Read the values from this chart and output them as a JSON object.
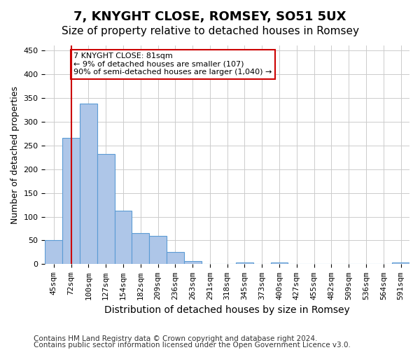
{
  "title": "7, KNYGHT CLOSE, ROMSEY, SO51 5UX",
  "subtitle": "Size of property relative to detached houses in Romsey",
  "xlabel": "Distribution of detached houses by size in Romsey",
  "ylabel": "Number of detached properties",
  "bin_labels": [
    "45sqm",
    "72sqm",
    "100sqm",
    "127sqm",
    "154sqm",
    "182sqm",
    "209sqm",
    "236sqm",
    "263sqm",
    "291sqm",
    "318sqm",
    "345sqm",
    "373sqm",
    "400sqm",
    "427sqm",
    "455sqm",
    "482sqm",
    "509sqm",
    "536sqm",
    "564sqm",
    "591sqm"
  ],
  "bar_heights": [
    50,
    265,
    338,
    232,
    112,
    65,
    60,
    25,
    6,
    0,
    0,
    4,
    0,
    4,
    0,
    0,
    0,
    0,
    0,
    0,
    4
  ],
  "bar_color": "#aec6e8",
  "bar_edge_color": "#5b9bd5",
  "vline_x": 1,
  "vline_color": "#cc0000",
  "annotation_text": "7 KNYGHT CLOSE: 81sqm\n← 9% of detached houses are smaller (107)\n90% of semi-detached houses are larger (1,040) →",
  "annotation_box_color": "#ffffff",
  "annotation_box_edge": "#cc0000",
  "ylim": [
    0,
    460
  ],
  "yticks": [
    0,
    50,
    100,
    150,
    200,
    250,
    300,
    350,
    400,
    450
  ],
  "footer_line1": "Contains HM Land Registry data © Crown copyright and database right 2024.",
  "footer_line2": "Contains public sector information licensed under the Open Government Licence v3.0.",
  "bg_color": "#ffffff",
  "grid_color": "#cccccc",
  "title_fontsize": 13,
  "subtitle_fontsize": 11,
  "xlabel_fontsize": 10,
  "ylabel_fontsize": 9,
  "tick_fontsize": 8,
  "footer_fontsize": 7.5
}
